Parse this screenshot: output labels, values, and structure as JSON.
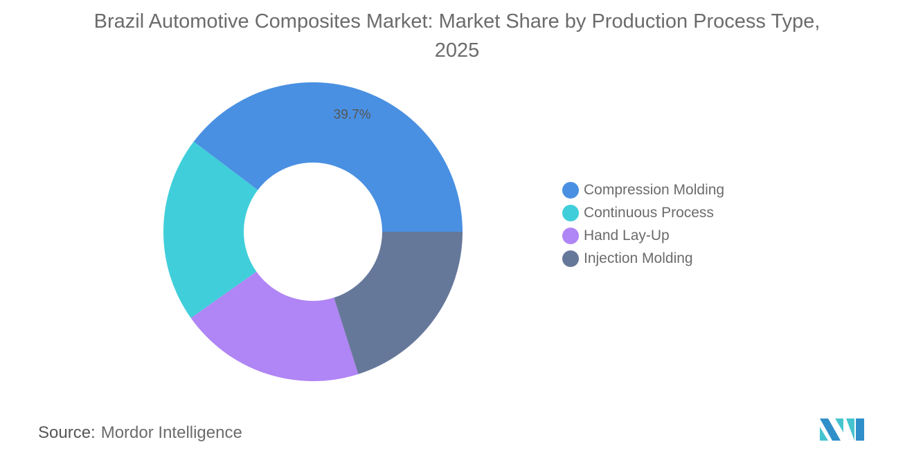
{
  "chart_data": {
    "type": "pie",
    "donut": true,
    "title": "Brazil Automotive Composites Market: Market Share by Production Process Type, 2025",
    "categories": [
      "Compression Molding",
      "Continuous Process",
      "Hand Lay-Up",
      "Injection Molding"
    ],
    "values": [
      39.7,
      20.1,
      20.1,
      20.1
    ],
    "colors": [
      "#4a90e2",
      "#40cfda",
      "#b085f5",
      "#66789a"
    ],
    "data_labels": [
      "39.7%",
      "",
      "",
      ""
    ],
    "legend_position": "right"
  },
  "source": {
    "label": "Source:",
    "value": "Mordor Intelligence"
  }
}
